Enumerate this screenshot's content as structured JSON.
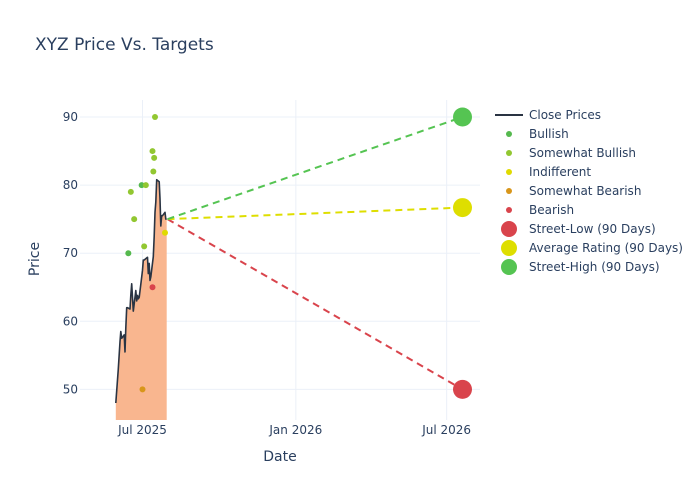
{
  "chart_data": {
    "type": "line",
    "title": "XYZ Price Vs. Targets",
    "xlabel": "Date",
    "ylabel": "Price",
    "xlim": [
      "2025-04-17",
      "2026-08-10"
    ],
    "ylim": [
      45.5,
      92.5
    ],
    "x_ticks": [
      {
        "date": "2025-07-01",
        "label": "Jul 2025"
      },
      {
        "date": "2026-01-01",
        "label": "Jan 2026"
      },
      {
        "date": "2026-07-01",
        "label": "Jul 2026"
      }
    ],
    "y_ticks": [
      50,
      60,
      70,
      80,
      90
    ],
    "grid": true,
    "legend_position": "right",
    "close_prices": {
      "name": "Close Prices",
      "color": "#2a3443",
      "fill_color": "#f9b68f",
      "x": [
        "2025-05-30",
        "2025-06-02",
        "2025-06-04",
        "2025-06-05",
        "2025-06-06",
        "2025-06-09",
        "2025-06-10",
        "2025-06-11",
        "2025-06-12",
        "2025-06-13",
        "2025-06-16",
        "2025-06-17",
        "2025-06-18",
        "2025-06-20",
        "2025-06-23",
        "2025-06-24",
        "2025-06-25",
        "2025-06-26",
        "2025-06-27",
        "2025-06-30",
        "2025-07-01",
        "2025-07-02",
        "2025-07-03",
        "2025-07-07",
        "2025-07-08",
        "2025-07-09",
        "2025-07-10",
        "2025-07-11",
        "2025-07-14",
        "2025-07-15",
        "2025-07-16",
        "2025-07-17",
        "2025-07-18",
        "2025-07-21",
        "2025-07-22",
        "2025-07-23",
        "2025-07-24",
        "2025-07-25",
        "2025-07-28",
        "2025-07-29",
        "2025-07-30"
      ],
      "y": [
        48,
        53,
        57,
        58.5,
        57.5,
        58,
        55.5,
        59,
        62,
        62,
        61.8,
        63.8,
        65.5,
        61.5,
        64.5,
        63,
        63.8,
        63.3,
        63.5,
        66.5,
        67.5,
        69,
        69,
        69.4,
        67,
        68.5,
        66,
        66.5,
        69.5,
        72.5,
        76,
        77.5,
        80.8,
        80.5,
        78,
        74,
        75.5,
        75.5,
        76,
        75,
        75
      ]
    },
    "ratings": [
      {
        "name": "Bullish",
        "color": "#55b94e",
        "points": [
          {
            "date": "2025-06-14",
            "price": 70
          },
          {
            "date": "2025-06-30",
            "price": 80
          }
        ]
      },
      {
        "name": "Somewhat Bullish",
        "color": "#92c731",
        "points": [
          {
            "date": "2025-06-17",
            "price": 79
          },
          {
            "date": "2025-06-21",
            "price": 75
          },
          {
            "date": "2025-07-03",
            "price": 71
          },
          {
            "date": "2025-07-05",
            "price": 80
          },
          {
            "date": "2025-07-13",
            "price": 85
          },
          {
            "date": "2025-07-14",
            "price": 82
          },
          {
            "date": "2025-07-15",
            "price": 84
          },
          {
            "date": "2025-07-16",
            "price": 90
          }
        ]
      },
      {
        "name": "Indifferent",
        "color": "#e0da00",
        "points": [
          {
            "date": "2025-07-28",
            "price": 73
          }
        ]
      },
      {
        "name": "Somewhat Bearish",
        "color": "#d8961a",
        "points": [
          {
            "date": "2025-07-01",
            "price": 50
          }
        ]
      },
      {
        "name": "Bearish",
        "color": "#d9444c",
        "points": [
          {
            "date": "2025-07-13",
            "price": 65
          }
        ]
      }
    ],
    "targets": {
      "start": {
        "date": "2025-07-31",
        "price": 75
      },
      "end_date": "2026-07-20",
      "lines": [
        {
          "name": "Street-Low (90 Days)",
          "price": 50,
          "color": "#d9444c"
        },
        {
          "name": "Average Rating (90 Days)",
          "price": 76.7,
          "color": "#dede00"
        },
        {
          "name": "Street-High (90 Days)",
          "price": 90,
          "color": "#55c452"
        }
      ]
    }
  }
}
